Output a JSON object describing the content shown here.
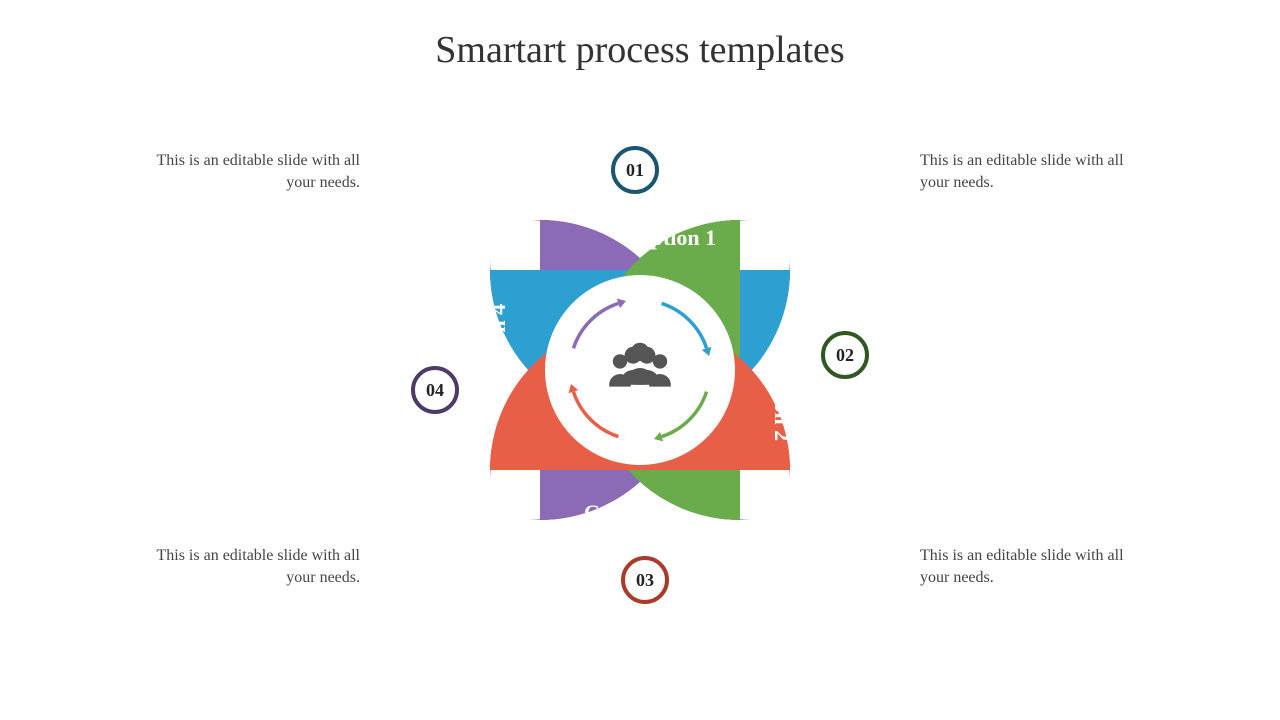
{
  "title": "Smartart process templates",
  "segments": [
    {
      "num": "01",
      "caption": "Caption 1",
      "desc": "This is an editable slide with all your needs.",
      "fill": "#2e9fd1",
      "dark": "#1f6f92",
      "badgeStroke": "#1a5670",
      "arrowColor": "#2e9fd1"
    },
    {
      "num": "02",
      "caption": "Caption 2",
      "desc": "This is an editable slide with all your needs.",
      "fill": "#6aab4c",
      "dark": "#3e6e2b",
      "badgeStroke": "#2f5721",
      "arrowColor": "#6aab4c"
    },
    {
      "num": "03",
      "caption": "Caption 3",
      "desc": "This is an editable slide with all your needs.",
      "fill": "#e75f46",
      "dark": "#b24432",
      "badgeStroke": "#a83b29",
      "arrowColor": "#e75f46"
    },
    {
      "num": "04",
      "caption": "Caption 4",
      "desc": "This is an editable slide with all your needs.",
      "fill": "#8b6bb5",
      "dark": "#624a83",
      "badgeStroke": "#4e3a68",
      "arrowColor": "#8b6bb5"
    }
  ],
  "style": {
    "background": "#ffffff",
    "titleColor": "#333333",
    "titleFontsize": 38,
    "descColor": "#444444",
    "descFontsize": 16,
    "captionFontsize": 22,
    "badgeFontsize": 18,
    "centerIconColor": "#555555",
    "centerCircleFill": "#ffffff",
    "centerCircleRadius": 95,
    "bladeRadius": 150,
    "bladeOffset": 100,
    "badgeRadius": 22
  }
}
